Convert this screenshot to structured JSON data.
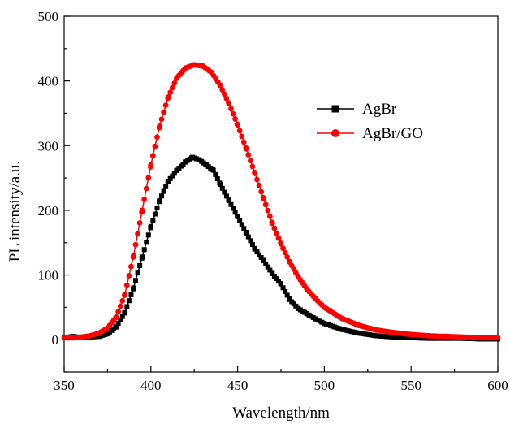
{
  "chart_data": {
    "type": "scatter",
    "xlabel": "Wavelength/nm",
    "ylabel": "PL intensity/a.u.",
    "xlim": [
      350,
      600
    ],
    "ylim": [
      -50,
      500
    ],
    "xticks": [
      350,
      400,
      450,
      500,
      550,
      600
    ],
    "yticks": [
      0,
      100,
      200,
      300,
      400,
      500
    ],
    "grid": false,
    "legend_position": "top-right",
    "series": [
      {
        "name": "AgBr",
        "marker": "square",
        "color": "#000000",
        "points": [
          [
            350,
            3
          ],
          [
            355,
            5
          ],
          [
            358,
            4
          ],
          [
            360,
            3
          ],
          [
            365,
            4
          ],
          [
            370,
            5
          ],
          [
            375,
            9
          ],
          [
            380,
            20
          ],
          [
            385,
            42
          ],
          [
            390,
            80
          ],
          [
            395,
            128
          ],
          [
            400,
            175
          ],
          [
            405,
            215
          ],
          [
            410,
            245
          ],
          [
            415,
            262
          ],
          [
            420,
            275
          ],
          [
            424,
            282
          ],
          [
            428,
            278
          ],
          [
            432,
            270
          ],
          [
            436,
            262
          ],
          [
            440,
            240
          ],
          [
            445,
            215
          ],
          [
            450,
            190
          ],
          [
            455,
            165
          ],
          [
            460,
            140
          ],
          [
            465,
            122
          ],
          [
            470,
            102
          ],
          [
            475,
            86
          ],
          [
            480,
            62
          ],
          [
            485,
            48
          ],
          [
            490,
            40
          ],
          [
            495,
            32
          ],
          [
            500,
            25
          ],
          [
            510,
            16
          ],
          [
            520,
            10
          ],
          [
            530,
            6
          ],
          [
            540,
            4
          ],
          [
            550,
            3
          ],
          [
            560,
            2
          ],
          [
            570,
            2
          ],
          [
            580,
            2
          ],
          [
            590,
            1
          ],
          [
            600,
            1
          ]
        ]
      },
      {
        "name": "AgBr/GO",
        "marker": "circle",
        "color": "#ff0000",
        "points": [
          [
            350,
            3
          ],
          [
            355,
            3
          ],
          [
            360,
            4
          ],
          [
            365,
            6
          ],
          [
            370,
            10
          ],
          [
            375,
            18
          ],
          [
            380,
            35
          ],
          [
            385,
            70
          ],
          [
            390,
            130
          ],
          [
            395,
            200
          ],
          [
            400,
            270
          ],
          [
            405,
            330
          ],
          [
            410,
            375
          ],
          [
            415,
            405
          ],
          [
            420,
            420
          ],
          [
            425,
            425
          ],
          [
            430,
            423
          ],
          [
            435,
            413
          ],
          [
            440,
            393
          ],
          [
            445,
            365
          ],
          [
            450,
            332
          ],
          [
            455,
            295
          ],
          [
            460,
            257
          ],
          [
            465,
            218
          ],
          [
            470,
            180
          ],
          [
            475,
            148
          ],
          [
            480,
            120
          ],
          [
            485,
            97
          ],
          [
            490,
            78
          ],
          [
            495,
            63
          ],
          [
            500,
            50
          ],
          [
            510,
            33
          ],
          [
            520,
            22
          ],
          [
            530,
            15
          ],
          [
            540,
            11
          ],
          [
            550,
            8
          ],
          [
            560,
            6
          ],
          [
            570,
            5
          ],
          [
            580,
            4
          ],
          [
            590,
            3
          ],
          [
            600,
            3
          ]
        ]
      }
    ]
  }
}
